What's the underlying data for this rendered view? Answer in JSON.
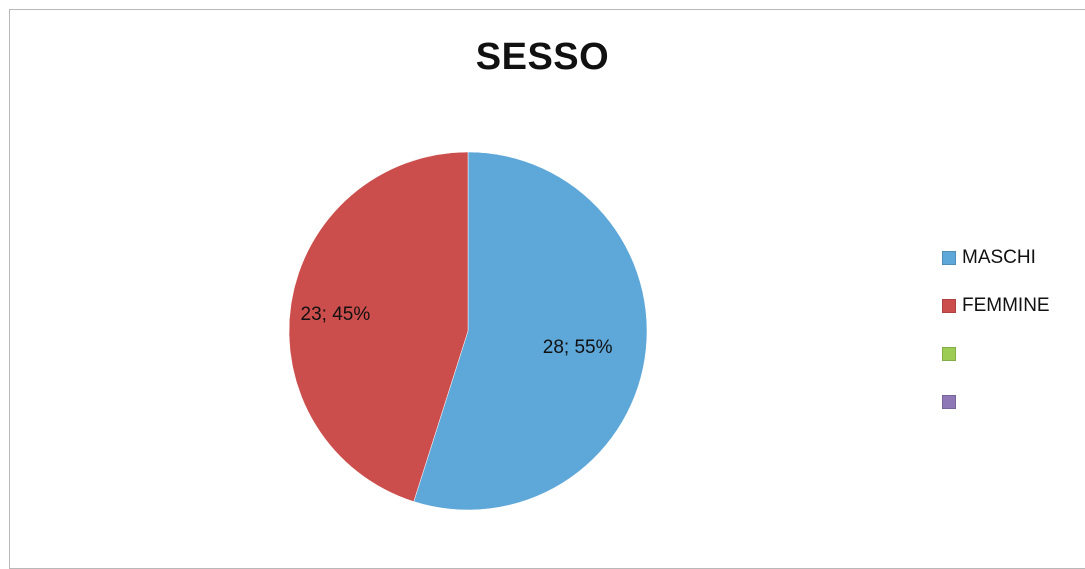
{
  "chart_data": {
    "type": "pie",
    "title": "SESSO",
    "slices": [
      {
        "name": "MASCHI",
        "value": 28,
        "percent": "55%",
        "label": "28; 55%",
        "color": "#5ea7d9"
      },
      {
        "name": "FEMMINE",
        "value": 23,
        "percent": "45%",
        "label": "23; 45%",
        "color": "#cc4e4c"
      }
    ],
    "legend": {
      "placement": "right",
      "entries": [
        {
          "label": "MASCHI",
          "color": "#5ea7d9"
        },
        {
          "label": "FEMMINE",
          "color": "#cc4e4c"
        },
        {
          "label": "",
          "color": "#9ccc54"
        },
        {
          "label": "",
          "color": "#8e78b5"
        }
      ]
    }
  }
}
